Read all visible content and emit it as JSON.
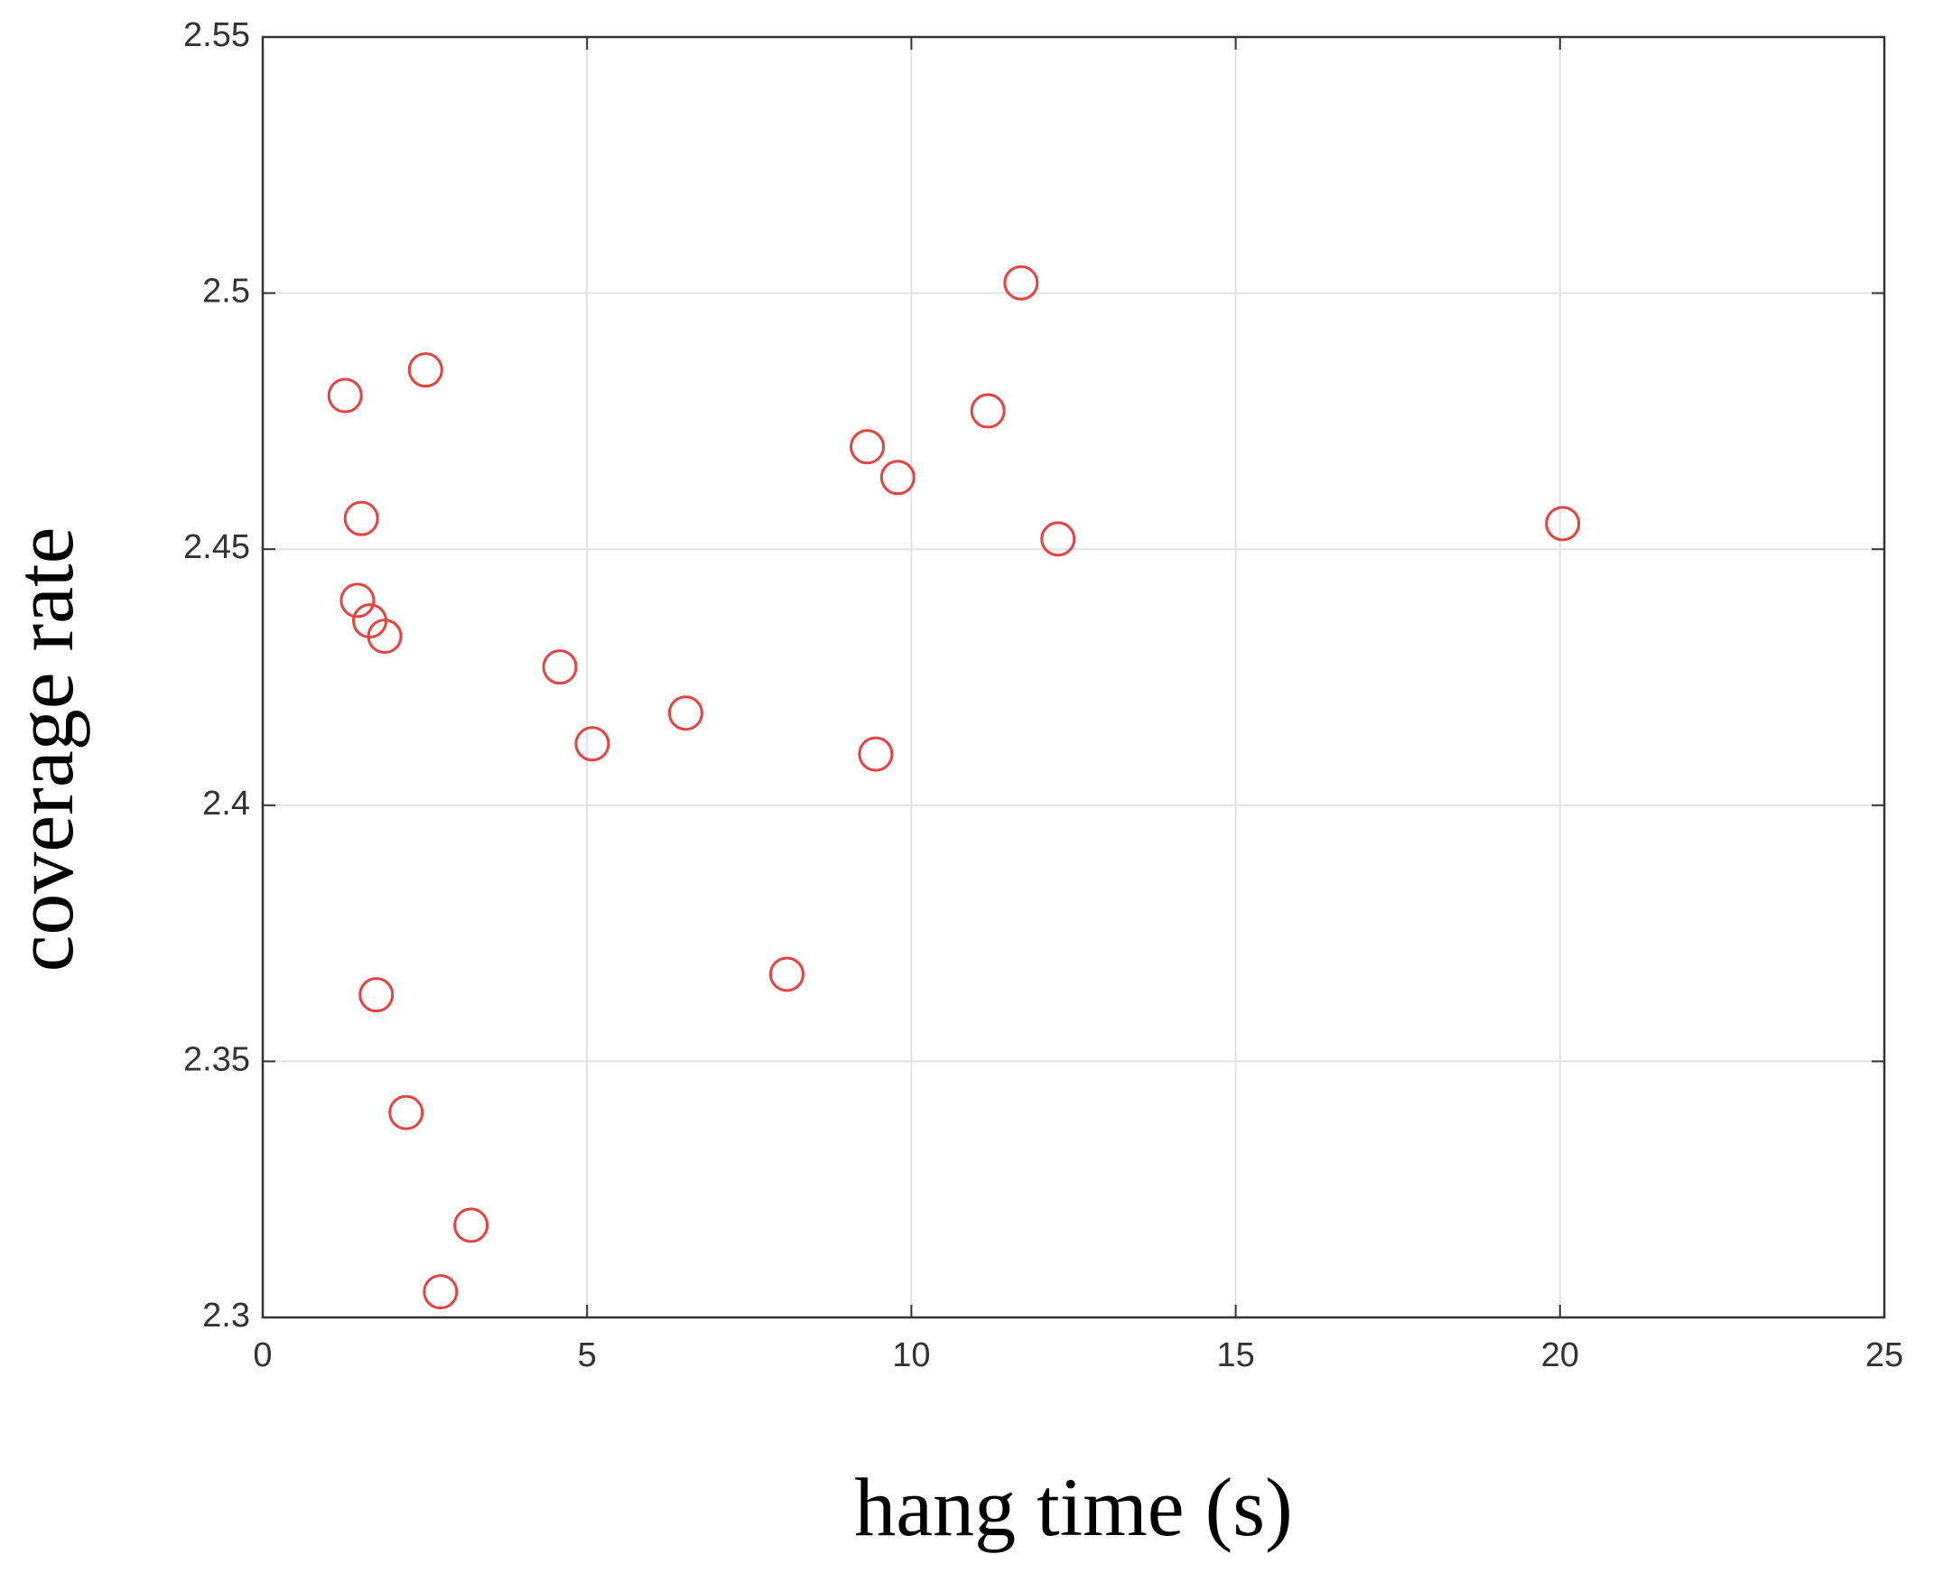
{
  "chart_data": {
    "type": "scatter",
    "x_label": "hang time (s)",
    "y_label": "coverage rate",
    "series": [
      {
        "color": "#e8413f",
        "x": [
          1.27,
          2.51,
          1.52,
          1.46,
          1.65,
          1.88,
          4.58,
          5.08,
          6.52,
          9.45,
          9.32,
          9.79,
          11.18,
          11.69,
          12.26,
          20.04,
          8.08,
          1.75,
          2.21,
          3.21,
          2.74
        ],
        "values": [
          2.48,
          2.485,
          2.456,
          2.44,
          2.436,
          2.433,
          2.427,
          2.412,
          2.418,
          2.41,
          2.47,
          2.464,
          2.477,
          2.502,
          2.452,
          2.455,
          2.367,
          2.363,
          2.34,
          2.318,
          2.305
        ]
      }
    ],
    "xlim": [
      0,
      25
    ],
    "xticks": [
      0,
      5,
      10,
      15,
      20,
      25
    ],
    "ylim": [
      2.3,
      2.55
    ],
    "yticks": [
      2.3,
      2.35,
      2.4,
      2.45,
      2.5,
      2.55
    ],
    "grid": true
  }
}
